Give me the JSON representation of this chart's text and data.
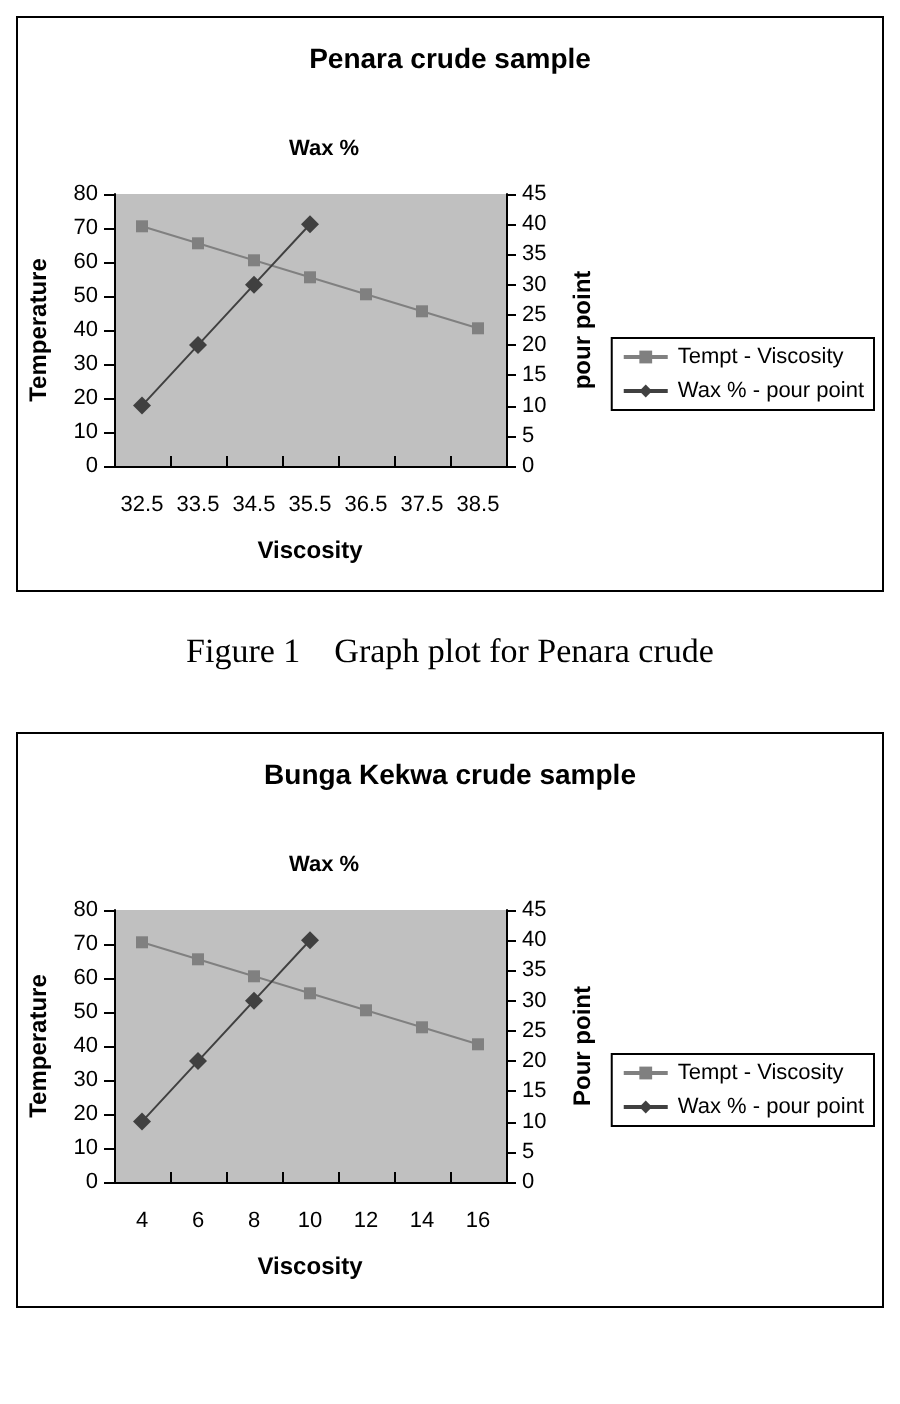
{
  "chart_data": [
    {
      "type": "line",
      "title": "Penara crude sample",
      "x2label": "Wax %",
      "xlabel": "Viscosity",
      "ylabel": "Temperature",
      "y2label": "pour point",
      "categories": [
        "32.5",
        "33.5",
        "34.5",
        "35.5",
        "36.5",
        "37.5",
        "38.5"
      ],
      "series": [
        {
          "name": "Tempt - Viscosity",
          "color": "#808080",
          "marker": "square",
          "values": [
            70.5,
            65.5,
            60.5,
            55.5,
            50.5,
            45.5,
            40.5
          ]
        },
        {
          "name": "Wax % - pour point",
          "color": "#404040",
          "marker": "diamond",
          "axis": "y2",
          "values": [
            10,
            20,
            30,
            40,
            null,
            null,
            null
          ]
        }
      ],
      "ylim": [
        0,
        80
      ],
      "yticks": [
        0,
        10,
        20,
        30,
        40,
        50,
        60,
        70,
        80
      ],
      "y2lim": [
        0,
        45
      ],
      "y2ticks": [
        0,
        5,
        10,
        15,
        20,
        25,
        30,
        35,
        40,
        45
      ],
      "grid": false,
      "legend": "right",
      "annotations": [
        "Figure 1    Graph plot for Penara crude"
      ]
    },
    {
      "type": "line",
      "title": "Bunga Kekwa crude sample",
      "x2label": "Wax %",
      "xlabel": "Viscosity",
      "ylabel": "Temperature",
      "y2label": "Pour point",
      "categories": [
        "4",
        "6",
        "8",
        "10",
        "12",
        "14",
        "16"
      ],
      "series": [
        {
          "name": "Tempt - Viscosity",
          "color": "#808080",
          "marker": "square",
          "values": [
            70.5,
            65.5,
            60.5,
            55.5,
            50.5,
            45.5,
            40.5
          ]
        },
        {
          "name": "Wax % - pour point",
          "color": "#404040",
          "marker": "diamond",
          "axis": "y2",
          "values": [
            10,
            20,
            30,
            40,
            null,
            null,
            null
          ]
        }
      ],
      "ylim": [
        0,
        80
      ],
      "yticks": [
        0,
        10,
        20,
        30,
        40,
        50,
        60,
        70,
        80
      ],
      "y2lim": [
        0,
        45
      ],
      "y2ticks": [
        0,
        5,
        10,
        15,
        20,
        25,
        30,
        35,
        40,
        45
      ],
      "grid": false,
      "legend": "right"
    }
  ]
}
